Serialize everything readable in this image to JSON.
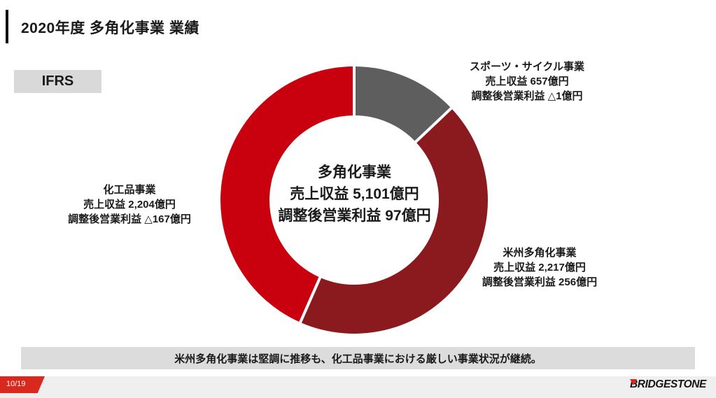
{
  "slide": {
    "title": "2020年度 多角化事業 業績",
    "framework_badge": "IFRS",
    "note": "米州多角化事業は堅調に推移も、化工品事業における厳しい事業状況が継続。",
    "page_number": "10/19",
    "brand": "BRIDGESTONE"
  },
  "colors": {
    "bright_red": "#c9010e",
    "dark_red": "#8a1a1e",
    "gray_segment": "#5f5e5e",
    "badge_gray": "#d9d9d9",
    "note_gray": "#dcdcdc",
    "footer_gray": "#efefef",
    "brand_red": "#d9291f",
    "separator_white": "#ffffff"
  },
  "chart_data": {
    "type": "pie",
    "subtype": "donut",
    "direction": "clockwise",
    "start_angle_deg": 0,
    "outer_radius": 191,
    "inner_radius": 121,
    "total": {
      "name": "多角化事業",
      "revenue_label": "売上収益 5,101億円",
      "profit_label": "調整後営業利益 97億円",
      "revenue_oku_yen": 5101,
      "adjusted_operating_profit_oku_yen": 97
    },
    "segments": [
      {
        "name": "スポーツ・サイクル事業",
        "revenue_label": "売上収益 657億円",
        "profit_label": "調整後営業利益 △1億円",
        "revenue_oku_yen": 657,
        "adjusted_operating_profit_oku_yen": -1,
        "color": "#5f5e5e",
        "label_position": "top-right"
      },
      {
        "name": "米州多角化事業",
        "revenue_label": "売上収益 2,217億円",
        "profit_label": "調整後営業利益 256億円",
        "revenue_oku_yen": 2217,
        "adjusted_operating_profit_oku_yen": 256,
        "color": "#8a1a1e",
        "label_position": "right"
      },
      {
        "name": "化工品事業",
        "revenue_label": "売上収益 2,204億円",
        "profit_label": "調整後営業利益 △167億円",
        "revenue_oku_yen": 2204,
        "adjusted_operating_profit_oku_yen": -167,
        "color": "#c9010e",
        "label_position": "left"
      }
    ]
  }
}
